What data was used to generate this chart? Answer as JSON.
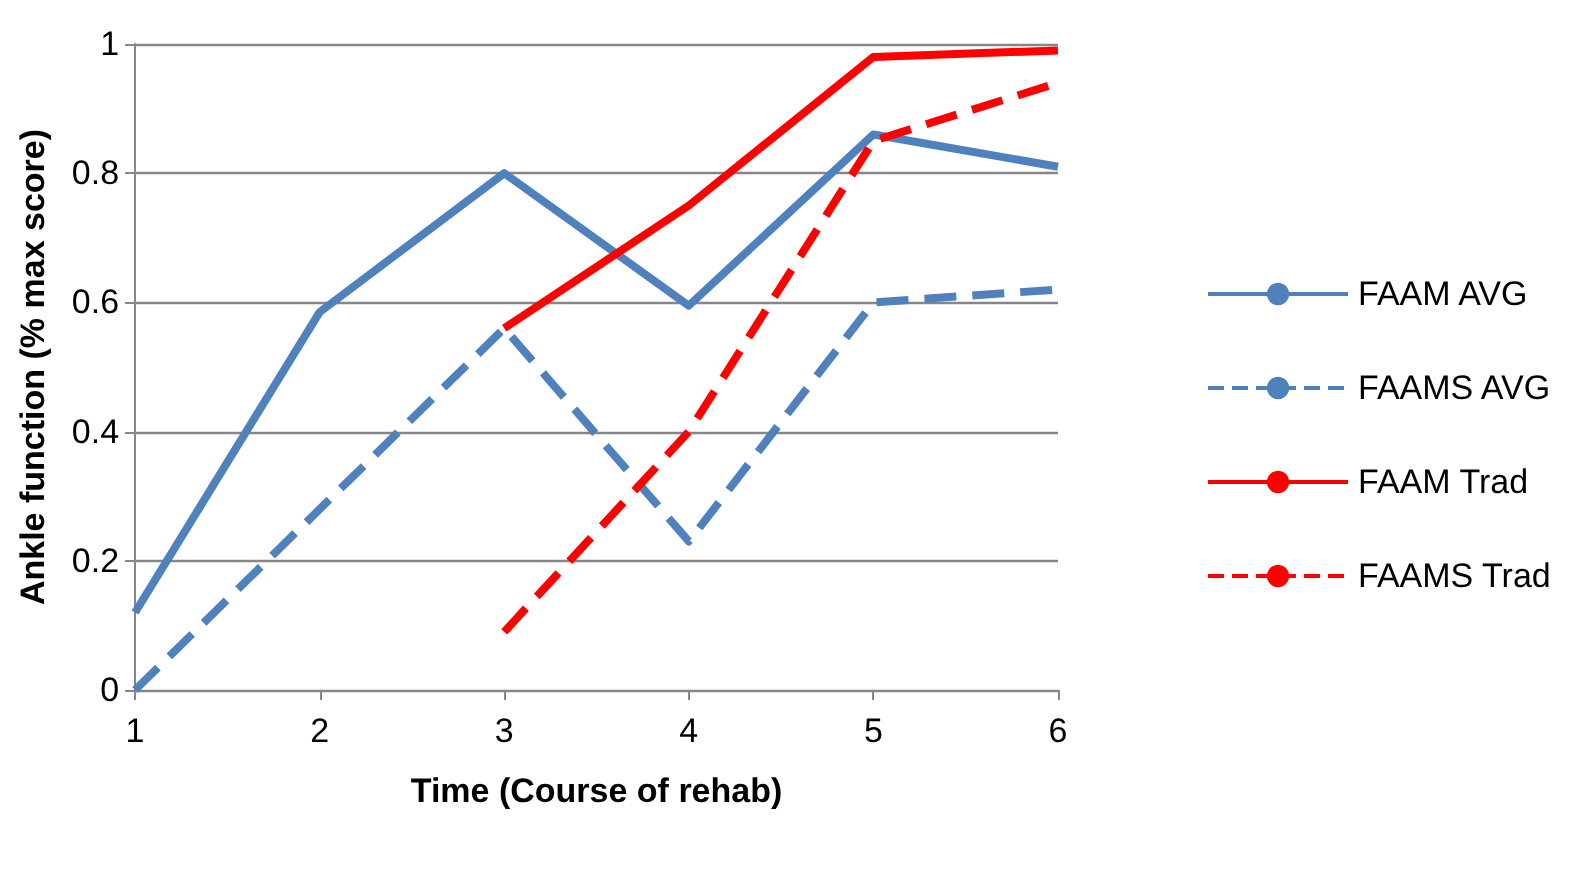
{
  "chart_data": {
    "type": "line",
    "xlabel": "Time (Course of rehab)",
    "ylabel": "Ankle function (% max score)",
    "x": [
      1,
      2,
      3,
      4,
      5,
      6
    ],
    "xlim": [
      1,
      6
    ],
    "xticks": [
      1,
      2,
      3,
      4,
      5,
      6
    ],
    "ylim": [
      0,
      1
    ],
    "yticks": [
      0,
      0.2,
      0.4,
      0.6,
      0.8,
      1
    ],
    "grid": "y",
    "legend": "right",
    "marker": "none",
    "series": [
      {
        "name": "FAAM AVG",
        "color": "#4f81bd",
        "line_style": "solid",
        "values": [
          0.12,
          0.585,
          0.8,
          0.595,
          0.86,
          0.81
        ]
      },
      {
        "name": "FAAMS AVG",
        "color": "#4f81bd",
        "line_style": "dashed",
        "values": [
          0,
          0.28,
          0.56,
          0.23,
          0.6,
          0.62
        ]
      },
      {
        "name": "FAAM Trad",
        "color": "#ff0000",
        "line_style": "solid",
        "values": [
          null,
          null,
          0.56,
          0.75,
          0.98,
          0.99
        ]
      },
      {
        "name": "FAAMS Trad",
        "color": "#ff0000",
        "line_style": "dashed",
        "values": [
          null,
          null,
          0.09,
          0.4,
          0.85,
          0.94
        ]
      }
    ]
  }
}
